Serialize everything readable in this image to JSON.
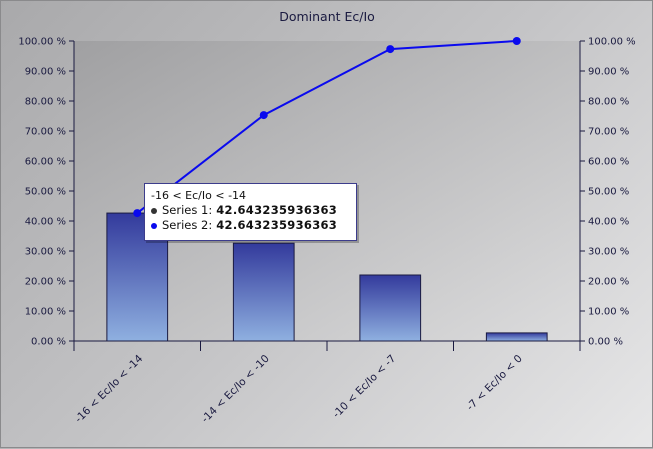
{
  "chart_data": {
    "type": "bar+line",
    "title": "Dominant Ec/Io",
    "categories": [
      "-16 < Ec/Io < -14",
      "-14 < Ec/Io < -10",
      "-10 < Ec/Io < -7",
      "-7 < Ec/Io < 0"
    ],
    "series": [
      {
        "name": "Series 1",
        "type": "bar",
        "values": [
          42.643235936363,
          32.6,
          22.0,
          2.7
        ],
        "color": "#3a3f9e"
      },
      {
        "name": "Series 2",
        "type": "line",
        "values": [
          42.643235936363,
          75.3,
          97.3,
          100.0
        ],
        "color": "#0a0aee"
      }
    ],
    "y_ticks": [
      "0.00 %",
      "10.00 %",
      "20.00 %",
      "30.00 %",
      "40.00 %",
      "50.00 %",
      "60.00 %",
      "70.00 %",
      "80.00 %",
      "90.00 %",
      "100.00 %"
    ],
    "ylim": [
      0,
      100
    ],
    "y2lim": [
      0,
      100
    ],
    "xlabel": "",
    "ylabel": "",
    "grid": false,
    "legend": "none"
  },
  "tooltip": {
    "category": "-16 < Ec/Io < -14",
    "rows": [
      {
        "label": "Series 1:",
        "value": "42.643235936363",
        "color": "#333333"
      },
      {
        "label": "Series 2:",
        "value": "42.643235936363",
        "color": "#0a0aee"
      }
    ]
  }
}
